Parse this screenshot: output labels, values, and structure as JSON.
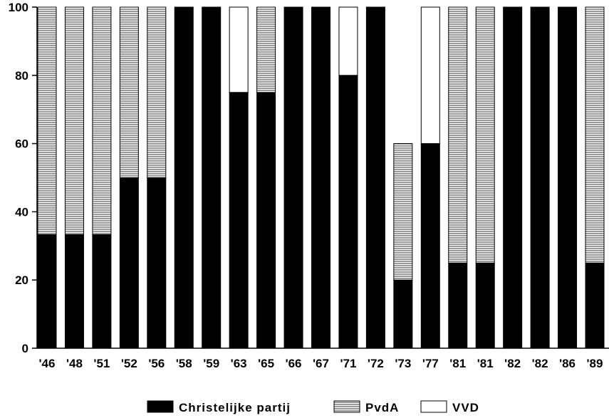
{
  "chart_data": {
    "type": "bar",
    "stacked": true,
    "categories": [
      "'46",
      "'48",
      "'51",
      "'52",
      "'56",
      "'58",
      "'59",
      "'63",
      "'65",
      "'66",
      "'67",
      "'71",
      "'72",
      "'73",
      "'77",
      "'81",
      "'81",
      "'82",
      "'82",
      "'86",
      "'89"
    ],
    "series": [
      {
        "name": "Christelijke partij",
        "fill": "solid",
        "color": "#000000",
        "values": [
          33.3,
          33.3,
          33.3,
          50,
          50,
          100,
          100,
          75,
          75,
          100,
          100,
          80,
          100,
          20,
          60,
          25,
          25,
          100,
          100,
          100,
          25
        ]
      },
      {
        "name": "PvdA",
        "fill": "horizontal-hatch",
        "color": "#000000",
        "values": [
          66.7,
          66.7,
          66.7,
          50,
          50,
          0,
          0,
          0,
          25,
          0,
          0,
          0,
          0,
          40,
          0,
          75,
          75,
          0,
          0,
          0,
          75
        ]
      },
      {
        "name": "VVD",
        "fill": "empty",
        "color": "#ffffff",
        "values": [
          0,
          0,
          0,
          0,
          0,
          0,
          0,
          25,
          0,
          0,
          0,
          20,
          0,
          0,
          40,
          0,
          0,
          0,
          0,
          0,
          0
        ]
      }
    ],
    "ylim": [
      0,
      100
    ],
    "yticks": [
      "0",
      "20",
      "40",
      "60",
      "80",
      "100"
    ],
    "legend_position": "bottom",
    "grid": false
  }
}
